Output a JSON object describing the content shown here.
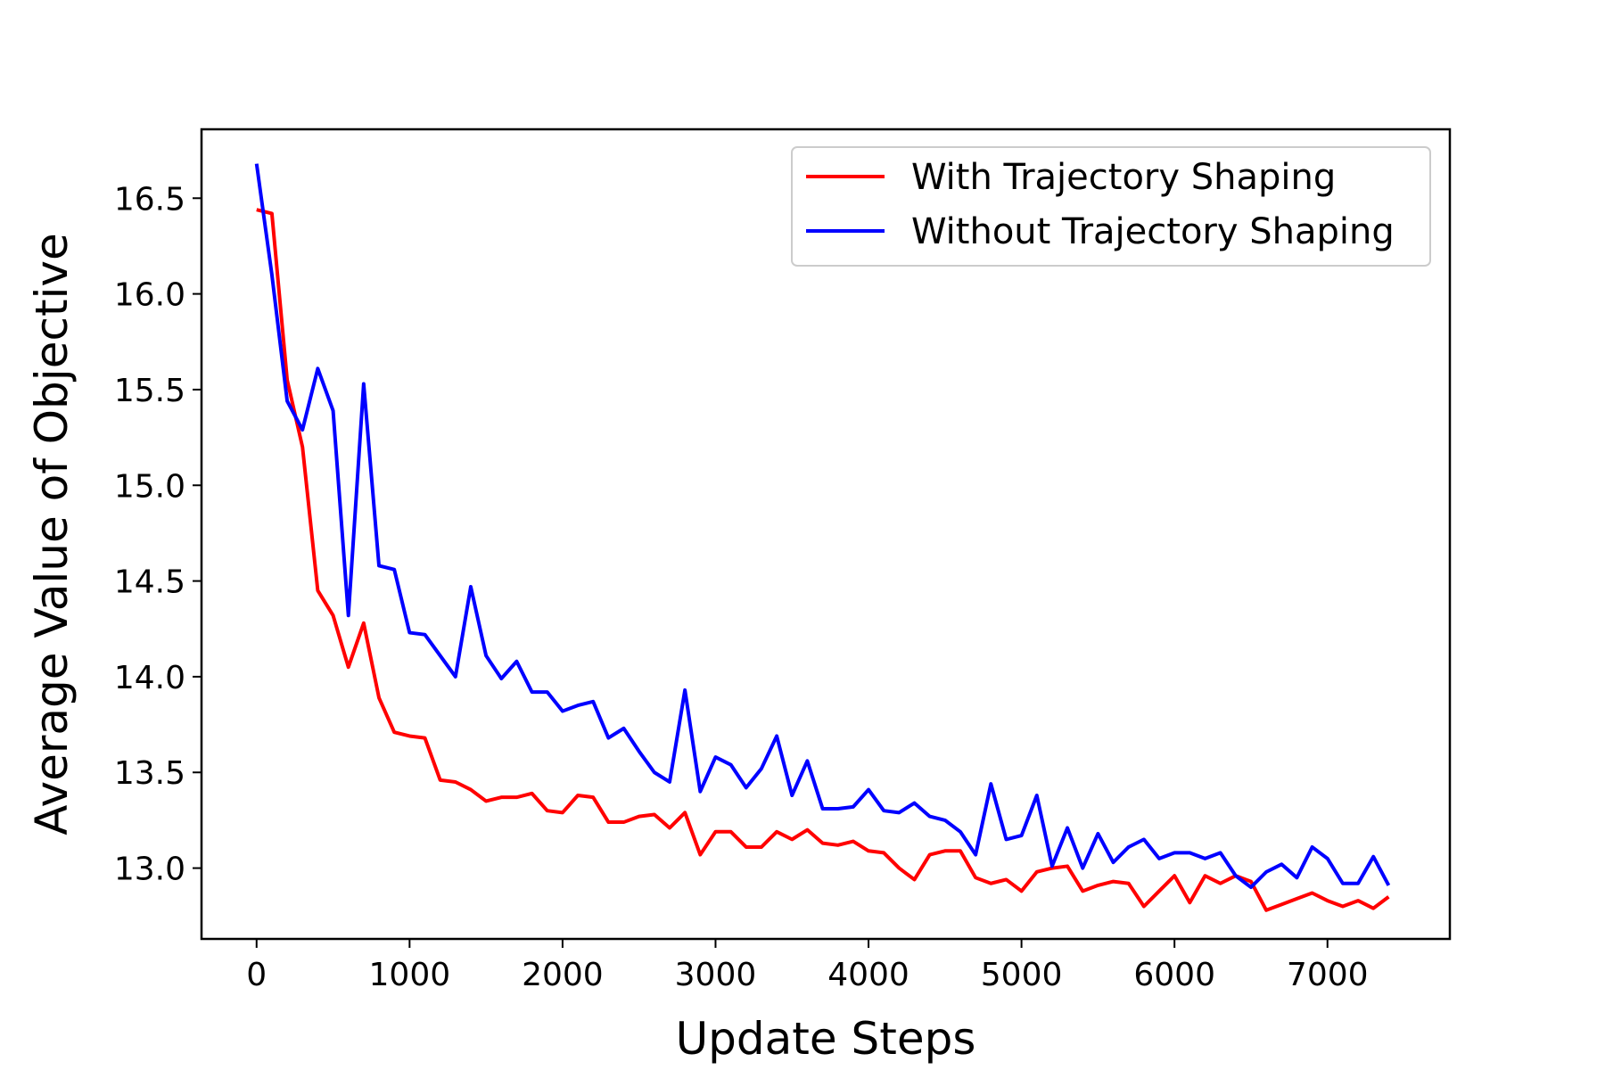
{
  "chart_data": {
    "type": "line",
    "title": "",
    "xlabel": "Update Steps",
    "ylabel": "Average Value of Objective",
    "xlim": [
      -360,
      7800
    ],
    "ylim": [
      12.63,
      16.86
    ],
    "xticks": [
      0,
      1000,
      2000,
      3000,
      4000,
      5000,
      6000,
      7000
    ],
    "yticks": [
      13.0,
      13.5,
      14.0,
      14.5,
      15.0,
      15.5,
      16.0,
      16.5
    ],
    "xtick_labels": [
      "0",
      "1000",
      "2000",
      "3000",
      "4000",
      "5000",
      "6000",
      "7000"
    ],
    "ytick_labels": [
      "13.0",
      "13.5",
      "14.0",
      "14.5",
      "15.0",
      "15.5",
      "16.0",
      "16.5"
    ],
    "grid": false,
    "legend_position": "top-right",
    "x": [
      0,
      100,
      200,
      300,
      400,
      500,
      600,
      700,
      800,
      900,
      1000,
      1100,
      1200,
      1300,
      1400,
      1500,
      1600,
      1700,
      1800,
      1900,
      2000,
      2100,
      2200,
      2300,
      2400,
      2500,
      2600,
      2700,
      2800,
      2900,
      3000,
      3100,
      3200,
      3300,
      3400,
      3500,
      3600,
      3700,
      3800,
      3900,
      4000,
      4100,
      4200,
      4300,
      4400,
      4500,
      4600,
      4700,
      4800,
      4900,
      5000,
      5100,
      5200,
      5300,
      5400,
      5500,
      5600,
      5700,
      5800,
      5900,
      6000,
      6100,
      6200,
      6300,
      6400,
      6500,
      6600,
      6700,
      6800,
      6900,
      7000,
      7100,
      7200,
      7300,
      7400
    ],
    "series": [
      {
        "name": "With Trajectory Shaping",
        "color": "#ff0000",
        "values": [
          16.44,
          16.42,
          15.55,
          15.2,
          14.45,
          14.32,
          14.05,
          14.28,
          13.89,
          13.71,
          13.69,
          13.68,
          13.46,
          13.45,
          13.41,
          13.35,
          13.37,
          13.37,
          13.39,
          13.3,
          13.29,
          13.38,
          13.37,
          13.24,
          13.24,
          13.27,
          13.28,
          13.21,
          13.29,
          13.07,
          13.19,
          13.19,
          13.11,
          13.11,
          13.19,
          13.15,
          13.2,
          13.13,
          13.12,
          13.14,
          13.09,
          13.08,
          13.0,
          12.94,
          13.07,
          13.09,
          13.09,
          12.95,
          12.92,
          12.94,
          12.88,
          12.98,
          13.0,
          13.01,
          12.88,
          12.91,
          12.93,
          12.92,
          12.8,
          12.88,
          12.96,
          12.82,
          12.96,
          12.92,
          12.96,
          12.93,
          12.78,
          12.81,
          12.84,
          12.87,
          12.83,
          12.8,
          12.83,
          12.79,
          12.85
        ]
      },
      {
        "name": "Without Trajectory Shaping",
        "color": "#0000ff",
        "values": [
          16.68,
          16.1,
          15.44,
          15.29,
          15.61,
          15.39,
          14.32,
          15.53,
          14.58,
          14.56,
          14.23,
          14.22,
          14.11,
          14.0,
          14.47,
          14.11,
          13.99,
          14.08,
          13.92,
          13.92,
          13.82,
          13.85,
          13.87,
          13.68,
          13.73,
          13.61,
          13.5,
          13.45,
          13.93,
          13.4,
          13.58,
          13.54,
          13.42,
          13.52,
          13.69,
          13.38,
          13.56,
          13.31,
          13.31,
          13.32,
          13.41,
          13.3,
          13.29,
          13.34,
          13.27,
          13.25,
          13.19,
          13.07,
          13.44,
          13.15,
          13.17,
          13.38,
          13.01,
          13.21,
          13.0,
          13.18,
          13.03,
          13.11,
          13.15,
          13.05,
          13.08,
          13.08,
          13.05,
          13.08,
          12.96,
          12.9,
          12.98,
          13.02,
          12.95,
          13.11,
          13.05,
          12.92,
          12.92,
          13.06,
          12.91
        ]
      }
    ]
  }
}
